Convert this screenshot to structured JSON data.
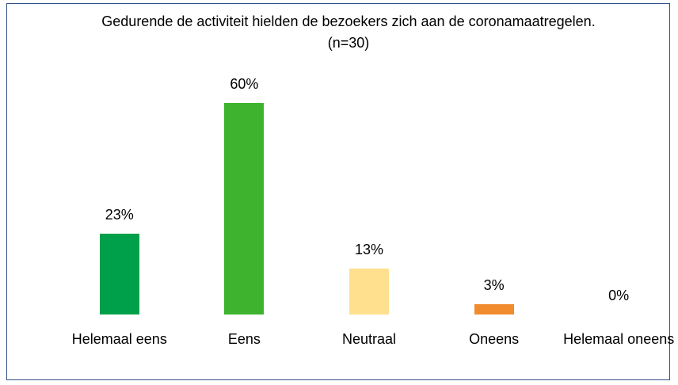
{
  "chart_data": {
    "type": "bar",
    "title": "Gedurende de activiteit hielden de bezoekers zich aan de coronamaatregelen.(n=30)",
    "categories": [
      "Helemaal eens",
      "Eens",
      "Neutraal",
      "Oneens",
      "Helemaal oneens"
    ],
    "values": [
      23,
      60,
      13,
      3,
      0
    ],
    "value_labels": [
      "23%",
      "60%",
      "13%",
      "3%",
      "0%"
    ],
    "colors": [
      "#00a04a",
      "#3db32e",
      "#ffe08f",
      "#f08c2e",
      "#c0392b"
    ]
  }
}
